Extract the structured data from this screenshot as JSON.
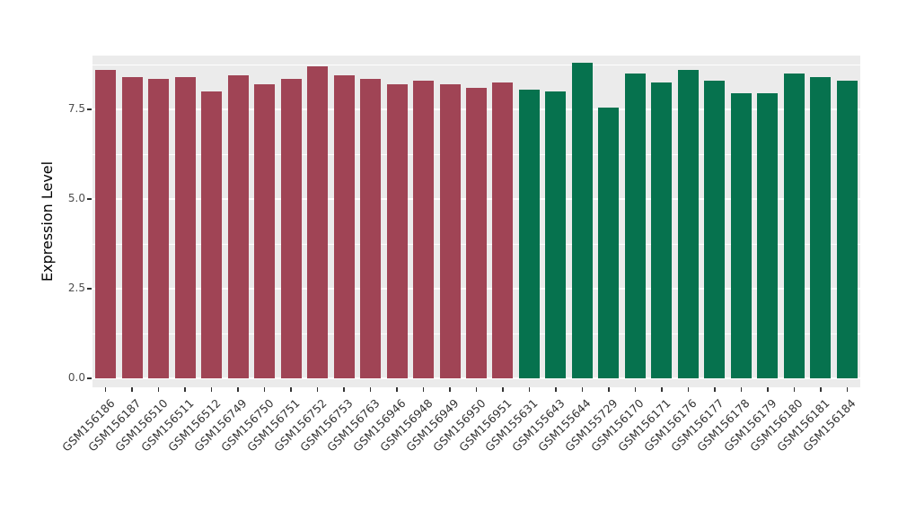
{
  "chart_data": {
    "type": "bar",
    "title": "",
    "xlabel": "",
    "ylabel": "Expression Level",
    "ylim": [
      0,
      9.0
    ],
    "yticks": [
      0.0,
      2.5,
      5.0,
      7.5
    ],
    "minor_yticks": [
      1.25,
      3.75,
      6.25,
      8.75
    ],
    "grid": "on",
    "legend": "none",
    "panel_bg": "#EBEBEB",
    "grid_color": "#FFFFFF",
    "colors": {
      "groupA": "#A04455",
      "groupB": "#06724E"
    },
    "categories": [
      "GSM156186",
      "GSM156187",
      "GSM156510",
      "GSM156511",
      "GSM156512",
      "GSM156749",
      "GSM156750",
      "GSM156751",
      "GSM156752",
      "GSM156753",
      "GSM156763",
      "GSM156946",
      "GSM156948",
      "GSM156949",
      "GSM156950",
      "GSM156951",
      "GSM155631",
      "GSM155643",
      "GSM155644",
      "GSM155729",
      "GSM156170",
      "GSM156171",
      "GSM156176",
      "GSM156177",
      "GSM156178",
      "GSM156179",
      "GSM156180",
      "GSM156181",
      "GSM156184"
    ],
    "values": [
      8.6,
      8.4,
      8.35,
      8.4,
      8.0,
      8.45,
      8.2,
      8.35,
      8.7,
      8.45,
      8.35,
      8.2,
      8.3,
      8.2,
      8.1,
      8.25,
      8.05,
      8.0,
      8.8,
      7.55,
      8.5,
      8.25,
      8.6,
      8.3,
      7.95,
      7.95,
      8.5,
      8.4,
      8.3
    ],
    "groups": [
      "groupA",
      "groupA",
      "groupA",
      "groupA",
      "groupA",
      "groupA",
      "groupA",
      "groupA",
      "groupA",
      "groupA",
      "groupA",
      "groupA",
      "groupA",
      "groupA",
      "groupA",
      "groupA",
      "groupB",
      "groupB",
      "groupB",
      "groupB",
      "groupB",
      "groupB",
      "groupB",
      "groupB",
      "groupB",
      "groupB",
      "groupB",
      "groupB",
      "groupB"
    ]
  }
}
